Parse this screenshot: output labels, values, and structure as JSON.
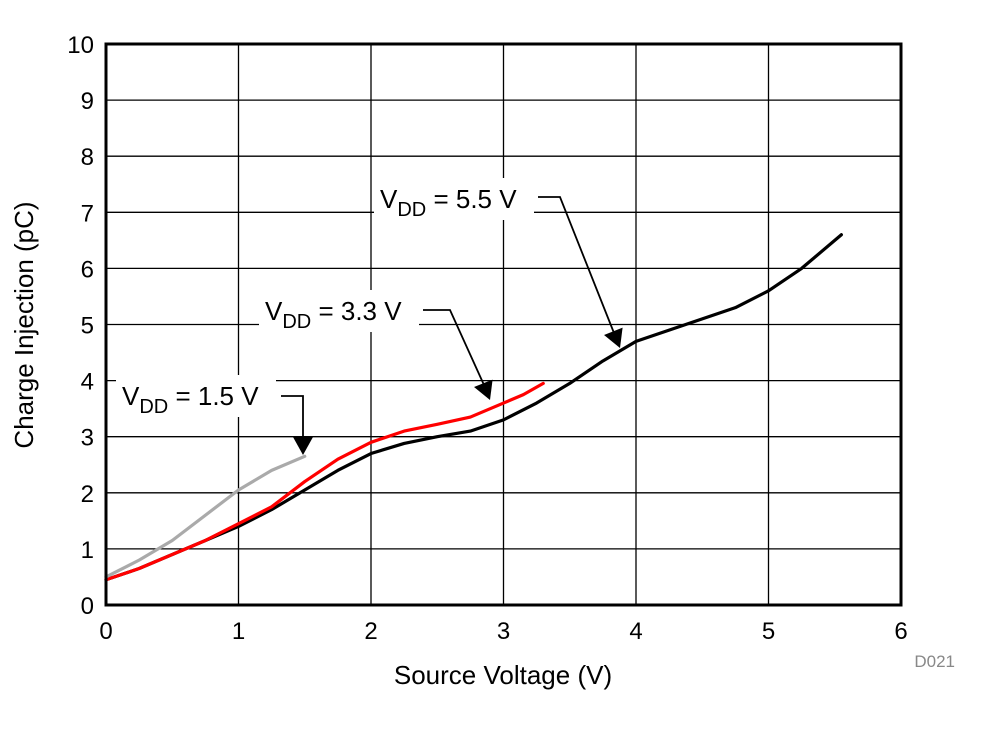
{
  "chart_data": {
    "type": "line",
    "title": "",
    "xlabel": "Source Voltage (V)",
    "ylabel": "Charge Injection (pC)",
    "xlim": [
      0,
      6
    ],
    "ylim": [
      0,
      10
    ],
    "xticks": [
      "0",
      "1",
      "2",
      "3",
      "4",
      "5",
      "6"
    ],
    "yticks": [
      "0",
      "1",
      "2",
      "3",
      "4",
      "5",
      "6",
      "7",
      "8",
      "9",
      "10"
    ],
    "grid": true,
    "figure_id": "D021",
    "series": [
      {
        "name": "VDD = 1.5 V",
        "label_main": "V",
        "label_sub": "DD",
        "label_rest": " = 1.5 V",
        "color": "#aaaaaa",
        "x": [
          0,
          0.25,
          0.5,
          0.75,
          1.0,
          1.25,
          1.5
        ],
        "y": [
          0.5,
          0.8,
          1.15,
          1.6,
          2.05,
          2.4,
          2.65
        ]
      },
      {
        "name": "VDD = 3.3 V",
        "label_main": "V",
        "label_sub": "DD",
        "label_rest": " = 3.3 V",
        "color": "#ff0000",
        "x": [
          0,
          0.25,
          0.5,
          0.75,
          1.0,
          1.25,
          1.5,
          1.75,
          2.0,
          2.25,
          2.5,
          2.75,
          3.0,
          3.15,
          3.3
        ],
        "y": [
          0.45,
          0.65,
          0.9,
          1.15,
          1.45,
          1.75,
          2.2,
          2.6,
          2.9,
          3.1,
          3.22,
          3.35,
          3.6,
          3.75,
          3.95
        ]
      },
      {
        "name": "VDD = 5.5 V",
        "label_main": "V",
        "label_sub": "DD",
        "label_rest": " = 5.5 V",
        "color": "#000000",
        "x": [
          0,
          0.25,
          0.5,
          0.75,
          1.0,
          1.25,
          1.5,
          1.75,
          2.0,
          2.25,
          2.5,
          2.75,
          3.0,
          3.25,
          3.5,
          3.75,
          4.0,
          4.25,
          4.5,
          4.75,
          5.0,
          5.25,
          5.55
        ],
        "y": [
          0.45,
          0.65,
          0.9,
          1.15,
          1.4,
          1.7,
          2.05,
          2.4,
          2.7,
          2.88,
          3.0,
          3.1,
          3.3,
          3.6,
          3.95,
          4.35,
          4.7,
          4.9,
          5.1,
          5.3,
          5.6,
          6.0,
          6.6
        ]
      }
    ]
  }
}
